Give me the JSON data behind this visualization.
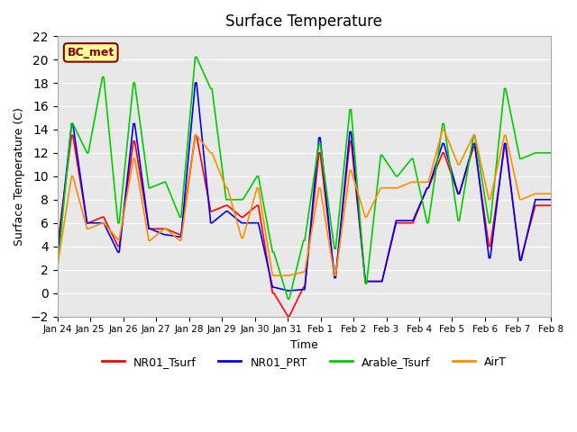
{
  "title": "Surface Temperature",
  "xlabel": "Time",
  "ylabel": "Surface Temperature (C)",
  "ylim": [
    -2,
    22
  ],
  "yticks": [
    -2,
    0,
    2,
    4,
    6,
    8,
    10,
    12,
    14,
    16,
    18,
    20,
    22
  ],
  "xtick_labels": [
    "Jan 24",
    "Jan 25",
    "Jan 26",
    "Jan 27",
    "Jan 28",
    "Jan 29",
    "Jan 30",
    "Jan 31",
    "Feb 1",
    "Feb 2",
    "Feb 3",
    "Feb 4",
    "Feb 5",
    "Feb 6",
    "Feb 7",
    "Feb 8"
  ],
  "annotation": "BC_met",
  "colors": {
    "NR01_Tsurf": "#FF0000",
    "NR01_PRT": "#0000FF",
    "Arable_Tsurf": "#00CC00",
    "AirT": "#FF8C00"
  },
  "background_color": "#E8E8E8"
}
